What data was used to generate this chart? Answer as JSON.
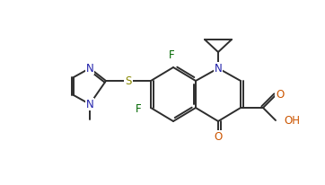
{
  "background_color": "#ffffff",
  "bond_color": "#2d2d2d",
  "atom_colors": {
    "N": "#2020aa",
    "O": "#cc5500",
    "S": "#888800",
    "F": "#006600",
    "C": "#000000"
  },
  "figsize": [
    3.62,
    2.06
  ],
  "dpi": 100
}
